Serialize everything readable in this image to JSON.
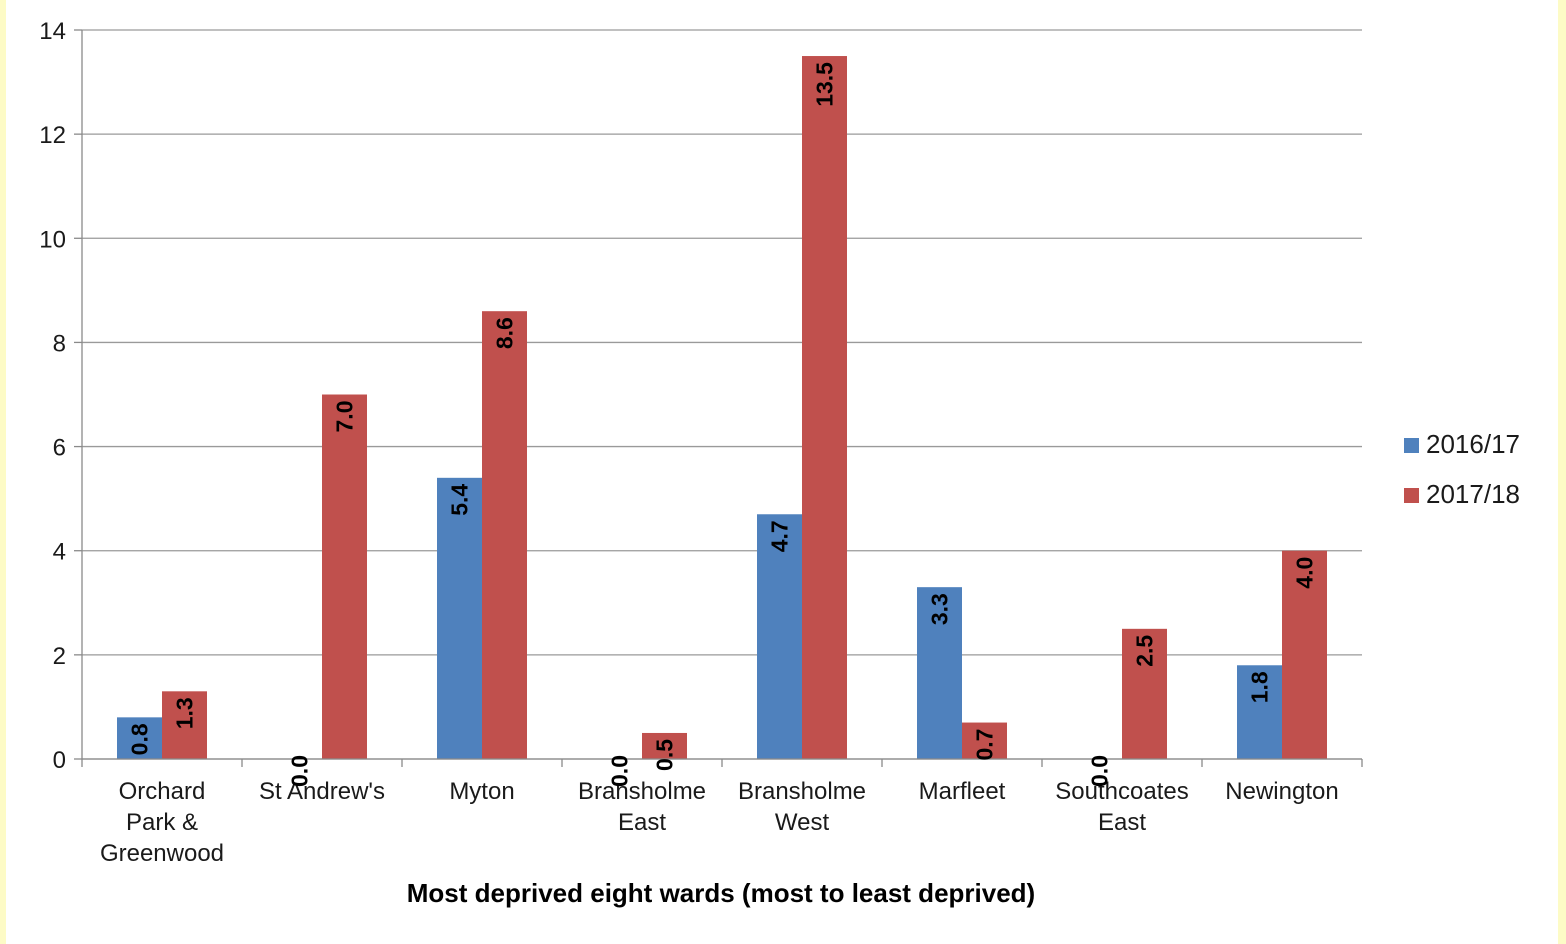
{
  "chart_data": {
    "type": "bar",
    "categories": [
      [
        "Orchard",
        "Park &",
        "Greenwood"
      ],
      [
        "St Andrew's"
      ],
      [
        "Myton"
      ],
      [
        "Bransholme",
        "East"
      ],
      [
        "Bransholme",
        "West"
      ],
      [
        "Marfleet"
      ],
      [
        "Southcoates",
        "East"
      ],
      [
        "Newington"
      ]
    ],
    "series": [
      {
        "name": "2016/17",
        "color": "#4f81bd",
        "values": [
          0.8,
          0.0,
          5.4,
          0.0,
          4.7,
          3.3,
          0.0,
          1.8
        ],
        "labels": [
          "0.8",
          "0.0",
          "5.4",
          "0.0",
          "4.7",
          "3.3",
          "0.0",
          "1.8"
        ]
      },
      {
        "name": "2017/18",
        "color": "#c0504d",
        "values": [
          1.3,
          7.0,
          8.6,
          0.5,
          13.5,
          0.7,
          2.5,
          4.0
        ],
        "labels": [
          "1.3",
          "7.0",
          "8.6",
          "0.5",
          "13.5",
          "0.7",
          "2.5",
          "4.0"
        ]
      }
    ],
    "yticks": [
      "0",
      "2",
      "4",
      "6",
      "8",
      "10",
      "12",
      "14"
    ],
    "ylim": [
      0,
      14
    ],
    "xlabel": "Most deprived eight wards (most to least deprived)",
    "ylabel": "",
    "title": "",
    "grid": true,
    "legend_position": "right"
  }
}
